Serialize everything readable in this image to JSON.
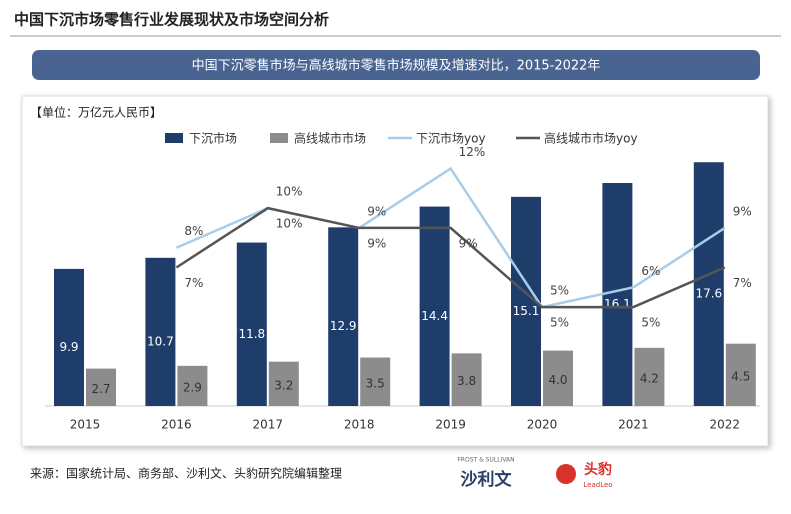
{
  "header": {
    "title": "中国下沉市场零售行业发展现状及市场空间分析"
  },
  "chart_data": {
    "type": "bar-line",
    "title": "中国下沉零售市场与高线城市零售市场规模及增速对比，2015-2022年",
    "unit": "【单位：万亿元人民币】",
    "categories": [
      "2015",
      "2016",
      "2017",
      "2018",
      "2019",
      "2020",
      "2021",
      "2022"
    ],
    "ylim": [
      0,
      20
    ],
    "y2lim": [
      0,
      14
    ],
    "series": [
      {
        "name": "下沉市场",
        "color": "#1f3d6b",
        "kind": "bar",
        "values": [
          9.9,
          10.7,
          11.8,
          12.9,
          14.4,
          15.1,
          16.1,
          17.6
        ]
      },
      {
        "name": "高线城市市场",
        "color": "#8c8c8c",
        "kind": "bar",
        "values": [
          2.7,
          2.9,
          3.2,
          3.5,
          3.8,
          4.0,
          4.2,
          4.5
        ],
        "value_labels": [
          "2.7",
          "2.9",
          "3.2",
          "3.5",
          "3.8",
          "4.0",
          "4.2",
          "4.5"
        ]
      },
      {
        "name": "下沉市场yoy",
        "color": "#a9cde8",
        "kind": "line",
        "axis": "y2",
        "values": [
          null,
          8,
          10,
          9,
          12,
          5,
          6,
          9
        ],
        "value_labels": [
          null,
          "8%",
          "10%",
          "9%",
          "12%",
          "5%",
          "6%",
          "9%"
        ]
      },
      {
        "name": "高线城市市场yoy",
        "color": "#555555",
        "kind": "line",
        "axis": "y2",
        "values": [
          null,
          7,
          10,
          9,
          9,
          5,
          5,
          7
        ],
        "value_labels": [
          null,
          "7%",
          "10%",
          "9%",
          "9%",
          "5%",
          "5%",
          "7%"
        ]
      }
    ]
  },
  "footer": {
    "source": "来源：国家统计局、商务部、沙利文、头豹研究院编辑整理",
    "logo1_small": "FROST & SULLIVAN",
    "logo1": "沙利文",
    "logo2": "头豹",
    "logo2_small": "LeadLeo"
  }
}
